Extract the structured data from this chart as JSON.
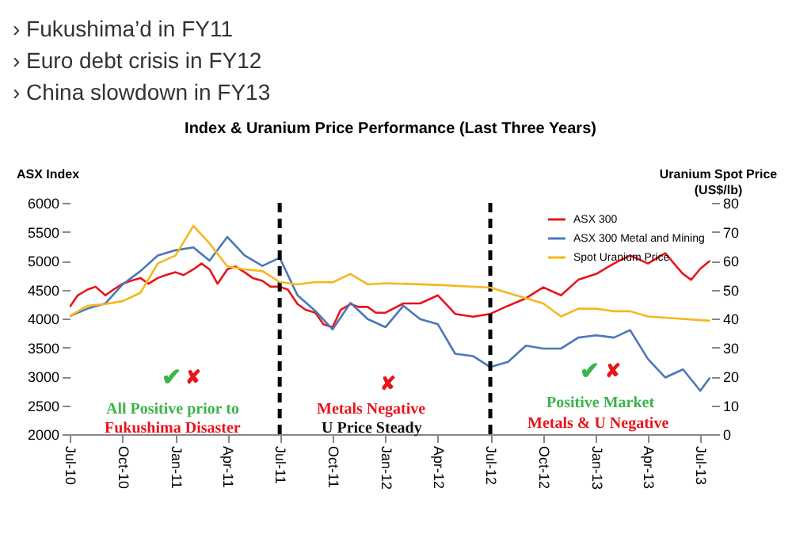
{
  "chart_data": {
    "type": "line",
    "title": "Index & Uranium Price Performance (Last Three Years)",
    "ylabel": "ASX Index",
    "y2label": "Uranium Spot Price (US$/lb)",
    "annotations": [
      "› Fukushima’d in FY11",
      "› Euro debt crisis in FY12",
      "› China slowdown in FY13",
      "✔",
      "✘",
      "All Positive prior to",
      "Fukushima Disaster",
      "✘",
      "Metals Negative",
      "U Price Steady",
      "✔",
      "✘",
      "Positive Market",
      "Metals & U Negative"
    ],
    "xlim": [
      "2010-07-01",
      "2013-07-20"
    ],
    "xticks": [
      {
        "value": "2010-07-01",
        "label": "Jul-10"
      },
      {
        "value": "2010-10-01",
        "label": "Oct-10"
      },
      {
        "value": "2011-01-01",
        "label": "Jan-11"
      },
      {
        "value": "2011-04-01",
        "label": "Apr-11"
      },
      {
        "value": "2011-07-01",
        "label": "Jul-11"
      },
      {
        "value": "2011-10-01",
        "label": "Oct-11"
      },
      {
        "value": "2012-01-01",
        "label": "Jan-12"
      },
      {
        "value": "2012-04-01",
        "label": "Apr-12"
      },
      {
        "value": "2012-07-01",
        "label": "Jul-12"
      },
      {
        "value": "2012-10-01",
        "label": "Oct-12"
      },
      {
        "value": "2013-01-01",
        "label": "Jan-13"
      },
      {
        "value": "2013-04-01",
        "label": "Apr-13"
      },
      {
        "value": "2013-07-01",
        "label": "Jul-13"
      }
    ],
    "ylim": [
      2000,
      6000
    ],
    "yticks": [
      2000,
      2500,
      3000,
      3500,
      4000,
      4500,
      5000,
      5500,
      6000
    ],
    "y2lim": [
      0,
      80
    ],
    "y2ticks": [
      0,
      10,
      20,
      30,
      40,
      50,
      60,
      70,
      80
    ],
    "legend": "top right",
    "ref_lines": [
      {
        "axis": "x",
        "value": "2011-07-01",
        "color": "#000000",
        "line_style": "dashed"
      },
      {
        "axis": "x",
        "value": "2012-07-01",
        "color": "#000000",
        "line_style": "dashed"
      }
    ],
    "series": [
      {
        "name": "ASX 300",
        "color": "#e8141b",
        "x": [
          "2010-07-01",
          "2010-07-15",
          "2010-08-01",
          "2010-08-15",
          "2010-09-01",
          "2010-09-15",
          "2010-10-01",
          "2010-10-15",
          "2010-11-01",
          "2010-11-15",
          "2010-12-01",
          "2010-12-15",
          "2011-01-01",
          "2011-01-15",
          "2011-02-01",
          "2011-02-15",
          "2011-03-01",
          "2011-03-15",
          "2011-04-01",
          "2011-04-15",
          "2011-05-01",
          "2011-05-15",
          "2011-06-01",
          "2011-06-15",
          "2011-07-01",
          "2011-07-15",
          "2011-08-01",
          "2011-08-15",
          "2011-09-01",
          "2011-09-15",
          "2011-10-01",
          "2011-10-15",
          "2011-11-01",
          "2011-11-15",
          "2011-12-01",
          "2011-12-15",
          "2012-01-01",
          "2012-02-01",
          "2012-03-01",
          "2012-04-01",
          "2012-05-01",
          "2012-06-01",
          "2012-07-01",
          "2012-08-01",
          "2012-09-01",
          "2012-10-01",
          "2012-11-01",
          "2012-12-01",
          "2013-01-01",
          "2013-02-01",
          "2013-03-01",
          "2013-04-01",
          "2013-05-01",
          "2013-06-01",
          "2013-06-15",
          "2013-07-01",
          "2013-07-18"
        ],
        "values": [
          4200,
          4400,
          4500,
          4550,
          4400,
          4500,
          4600,
          4650,
          4700,
          4600,
          4700,
          4750,
          4800,
          4750,
          4850,
          4950,
          4850,
          4600,
          4850,
          4900,
          4800,
          4700,
          4650,
          4550,
          4550,
          4500,
          4250,
          4150,
          4100,
          3900,
          3850,
          4150,
          4250,
          4200,
          4200,
          4100,
          4100,
          4260,
          4260,
          4400,
          4080,
          4030,
          4080,
          4220,
          4350,
          4540,
          4400,
          4670,
          4770,
          4950,
          5090,
          4950,
          5130,
          4770,
          4670,
          4860,
          5000
        ]
      },
      {
        "name": "ASX 300 Metal and Mining",
        "color": "#4a78b8",
        "x": [
          "2010-07-01",
          "2010-08-01",
          "2010-09-01",
          "2010-10-01",
          "2010-11-01",
          "2010-12-01",
          "2011-01-01",
          "2011-02-01",
          "2011-03-01",
          "2011-04-01",
          "2011-05-01",
          "2011-06-01",
          "2011-07-01",
          "2011-08-01",
          "2011-09-01",
          "2011-10-01",
          "2011-11-01",
          "2011-12-01",
          "2012-01-01",
          "2012-02-01",
          "2012-03-01",
          "2012-04-01",
          "2012-05-01",
          "2012-06-01",
          "2012-07-01",
          "2012-08-01",
          "2012-09-01",
          "2012-10-01",
          "2012-11-01",
          "2012-12-01",
          "2013-01-01",
          "2013-02-01",
          "2013-03-01",
          "2013-04-01",
          "2013-05-01",
          "2013-06-01",
          "2013-07-01",
          "2013-07-18"
        ],
        "values": [
          4040,
          4170,
          4260,
          4590,
          4820,
          5090,
          5180,
          5230,
          5000,
          5410,
          5090,
          4910,
          5050,
          4400,
          4130,
          3810,
          4270,
          3990,
          3850,
          4220,
          3990,
          3900,
          3390,
          3350,
          3160,
          3250,
          3530,
          3480,
          3480,
          3670,
          3710,
          3670,
          3800,
          3300,
          2980,
          3120,
          2750,
          2980
        ]
      },
      {
        "name": "Spot Uranium Price",
        "color": "#f5b81c",
        "axis": "y2",
        "x": [
          "2010-07-01",
          "2010-08-01",
          "2010-09-01",
          "2010-10-01",
          "2010-11-01",
          "2010-12-01",
          "2011-01-01",
          "2011-02-01",
          "2011-03-01",
          "2011-04-01",
          "2011-05-01",
          "2011-06-01",
          "2011-07-01",
          "2011-08-01",
          "2011-09-01",
          "2011-10-01",
          "2011-11-01",
          "2011-12-01",
          "2012-01-01",
          "2012-04-01",
          "2012-07-01",
          "2012-09-01",
          "2012-10-01",
          "2012-11-01",
          "2012-12-01",
          "2013-01-01",
          "2013-02-01",
          "2013-03-01",
          "2013-04-01",
          "2013-07-18"
        ],
        "values": [
          40.8,
          44.4,
          45,
          46,
          48.9,
          59,
          61.8,
          72,
          66,
          58,
          57,
          56.4,
          52.6,
          51.8,
          52.6,
          52.5,
          55.4,
          51.8,
          52.2,
          51.6,
          50.7,
          47,
          45.2,
          40.7,
          43.4,
          43.4,
          42.5,
          42.5,
          40.7,
          39.2
        ]
      }
    ]
  }
}
